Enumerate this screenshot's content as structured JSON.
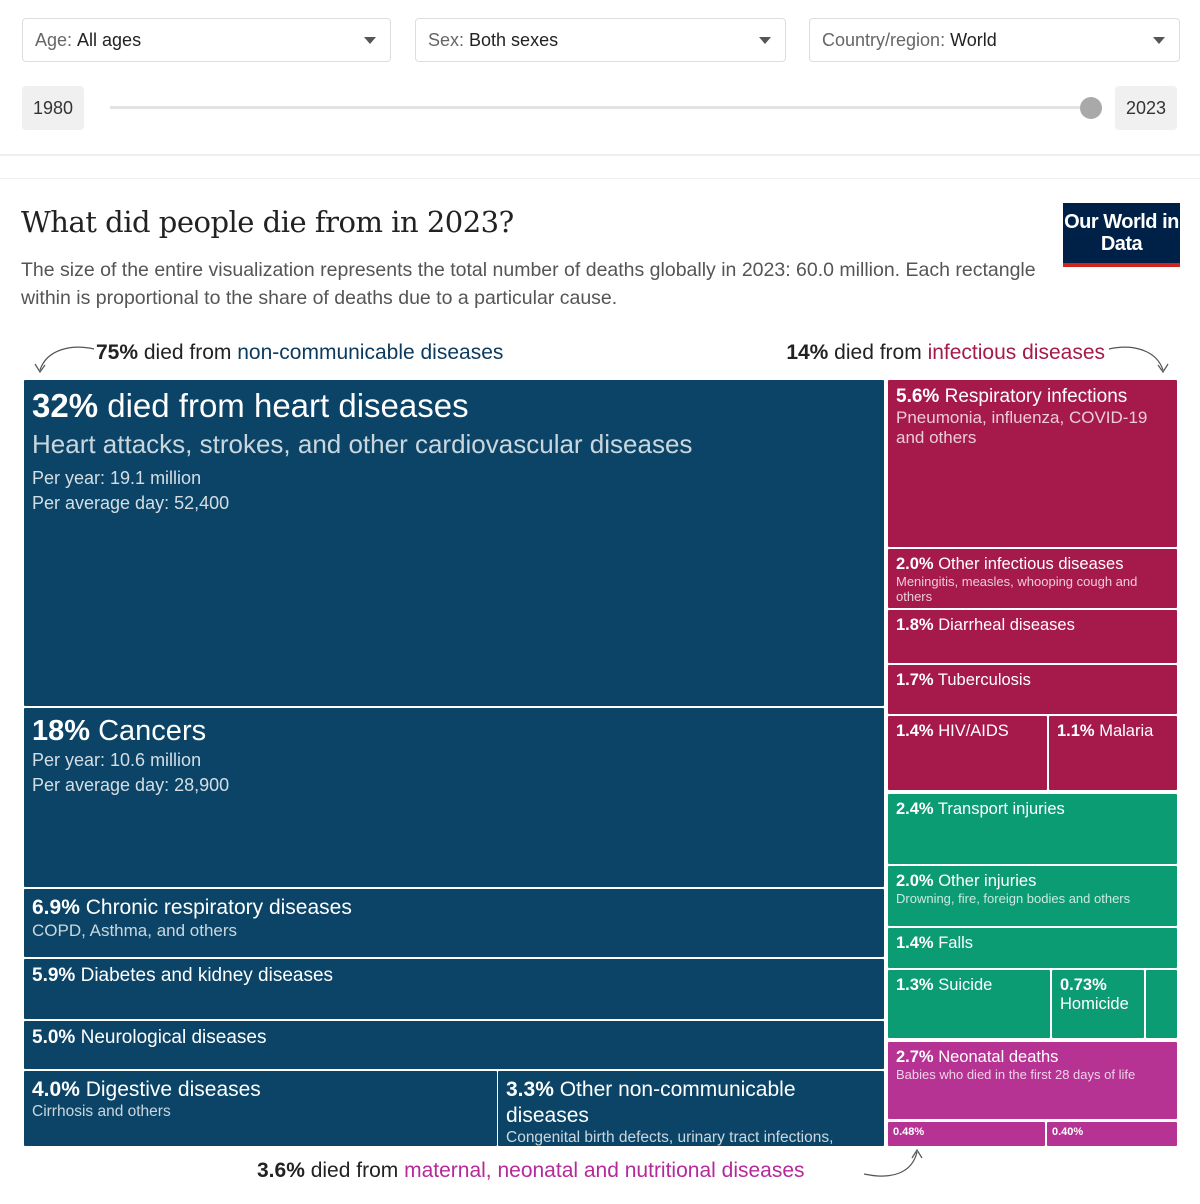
{
  "controls": {
    "age": {
      "label": "Age:",
      "value": "All ages"
    },
    "sex": {
      "label": "Sex:",
      "value": "Both sexes"
    },
    "country": {
      "label": "Country/region:",
      "value": "World"
    },
    "year_start": "1980",
    "year_end": "2023",
    "slider_position_year": "2023"
  },
  "header": {
    "title": "What did people die from in 2023?",
    "subtitle": "The size of the entire visualization represents the total number of deaths globally in 2023: 60.0 million. Each rectangle within is proportional to the share of deaths due to a particular cause.",
    "logo": "Our World in Data"
  },
  "annotations": {
    "ncd": {
      "pct": "75%",
      "mid": " died from ",
      "group": "non-communicable diseases"
    },
    "inf": {
      "pct": "14%",
      "mid": " died from ",
      "group": "infectious diseases"
    },
    "mat": {
      "pct": "3.6%",
      "mid": " died from ",
      "group": "maternal, neonatal and nutritional diseases"
    }
  },
  "colors": {
    "ncd": "#0b4466",
    "infectious": "#a51a4b",
    "injuries": "#0c9c74",
    "maternal": "#b63394",
    "text_ncd": "#0b3a5e",
    "text_inf": "#a51a4b",
    "text_mat": "#b5299a"
  },
  "chart_data": {
    "type": "treemap",
    "total_deaths": "60.0 million",
    "year": 2023,
    "items": [
      {
        "group": "ncd",
        "pct": "32%",
        "label": "died from heart diseases",
        "sub": "Heart attacks, strokes, and other cardiovascular diseases",
        "extra": [
          "Per year: 19.1 million",
          "Per average day: 52,400"
        ],
        "value": 32
      },
      {
        "group": "ncd",
        "pct": "18%",
        "label": "Cancers",
        "sub": "",
        "extra": [
          "Per year: 10.6 million",
          "Per average day: 28,900"
        ],
        "value": 18
      },
      {
        "group": "ncd",
        "pct": "6.9%",
        "label": "Chronic respiratory diseases",
        "sub": "COPD, Asthma, and others",
        "value": 6.9
      },
      {
        "group": "ncd",
        "pct": "5.9%",
        "label": "Diabetes and kidney diseases",
        "sub": "",
        "value": 5.9
      },
      {
        "group": "ncd",
        "pct": "5.0%",
        "label": "Neurological diseases",
        "sub": "",
        "value": 5.0
      },
      {
        "group": "ncd",
        "pct": "4.0%",
        "label": "Digestive diseases",
        "sub": "Cirrhosis and others",
        "value": 4.0
      },
      {
        "group": "ncd",
        "pct": "3.3%",
        "label": "Other non-communicable diseases",
        "sub": "Congenital birth defects, urinary tract infections, endocrine disorders and others",
        "value": 3.3
      },
      {
        "group": "infectious",
        "pct": "5.6%",
        "label": "Respiratory infections",
        "sub": "Pneumonia, influenza, COVID-19 and others",
        "value": 5.6
      },
      {
        "group": "infectious",
        "pct": "2.0%",
        "label": "Other infectious diseases",
        "sub": "Meningitis, measles, whooping cough and others",
        "value": 2.0
      },
      {
        "group": "infectious",
        "pct": "1.8%",
        "label": "Diarrheal diseases",
        "sub": "",
        "value": 1.8
      },
      {
        "group": "infectious",
        "pct": "1.7%",
        "label": "Tuberculosis",
        "sub": "",
        "value": 1.7
      },
      {
        "group": "infectious",
        "pct": "1.4%",
        "label": "HIV/AIDS",
        "sub": "",
        "value": 1.4
      },
      {
        "group": "infectious",
        "pct": "1.1%",
        "label": "Malaria",
        "sub": "",
        "value": 1.1
      },
      {
        "group": "injuries",
        "pct": "2.4%",
        "label": "Transport injuries",
        "sub": "",
        "value": 2.4
      },
      {
        "group": "injuries",
        "pct": "2.0%",
        "label": "Other injuries",
        "sub": "Drowning, fire, foreign bodies and others",
        "value": 2.0
      },
      {
        "group": "injuries",
        "pct": "1.4%",
        "label": "Falls",
        "sub": "",
        "value": 1.4
      },
      {
        "group": "injuries",
        "pct": "1.3%",
        "label": "Suicide",
        "sub": "",
        "value": 1.3
      },
      {
        "group": "injuries",
        "pct": "0.73%",
        "label": "Homicide",
        "sub": "",
        "value": 0.73
      },
      {
        "group": "injuries",
        "pct": "",
        "label": "",
        "sub": "",
        "value": null
      },
      {
        "group": "maternal",
        "pct": "2.7%",
        "label": "Neonatal deaths",
        "sub": "Babies who died in the first 28 days of life",
        "value": 2.7
      },
      {
        "group": "maternal",
        "pct": "0.48%",
        "label": "",
        "sub": "",
        "value": 0.48
      },
      {
        "group": "maternal",
        "pct": "0.40%",
        "label": "",
        "sub": "",
        "value": 0.4
      }
    ]
  }
}
